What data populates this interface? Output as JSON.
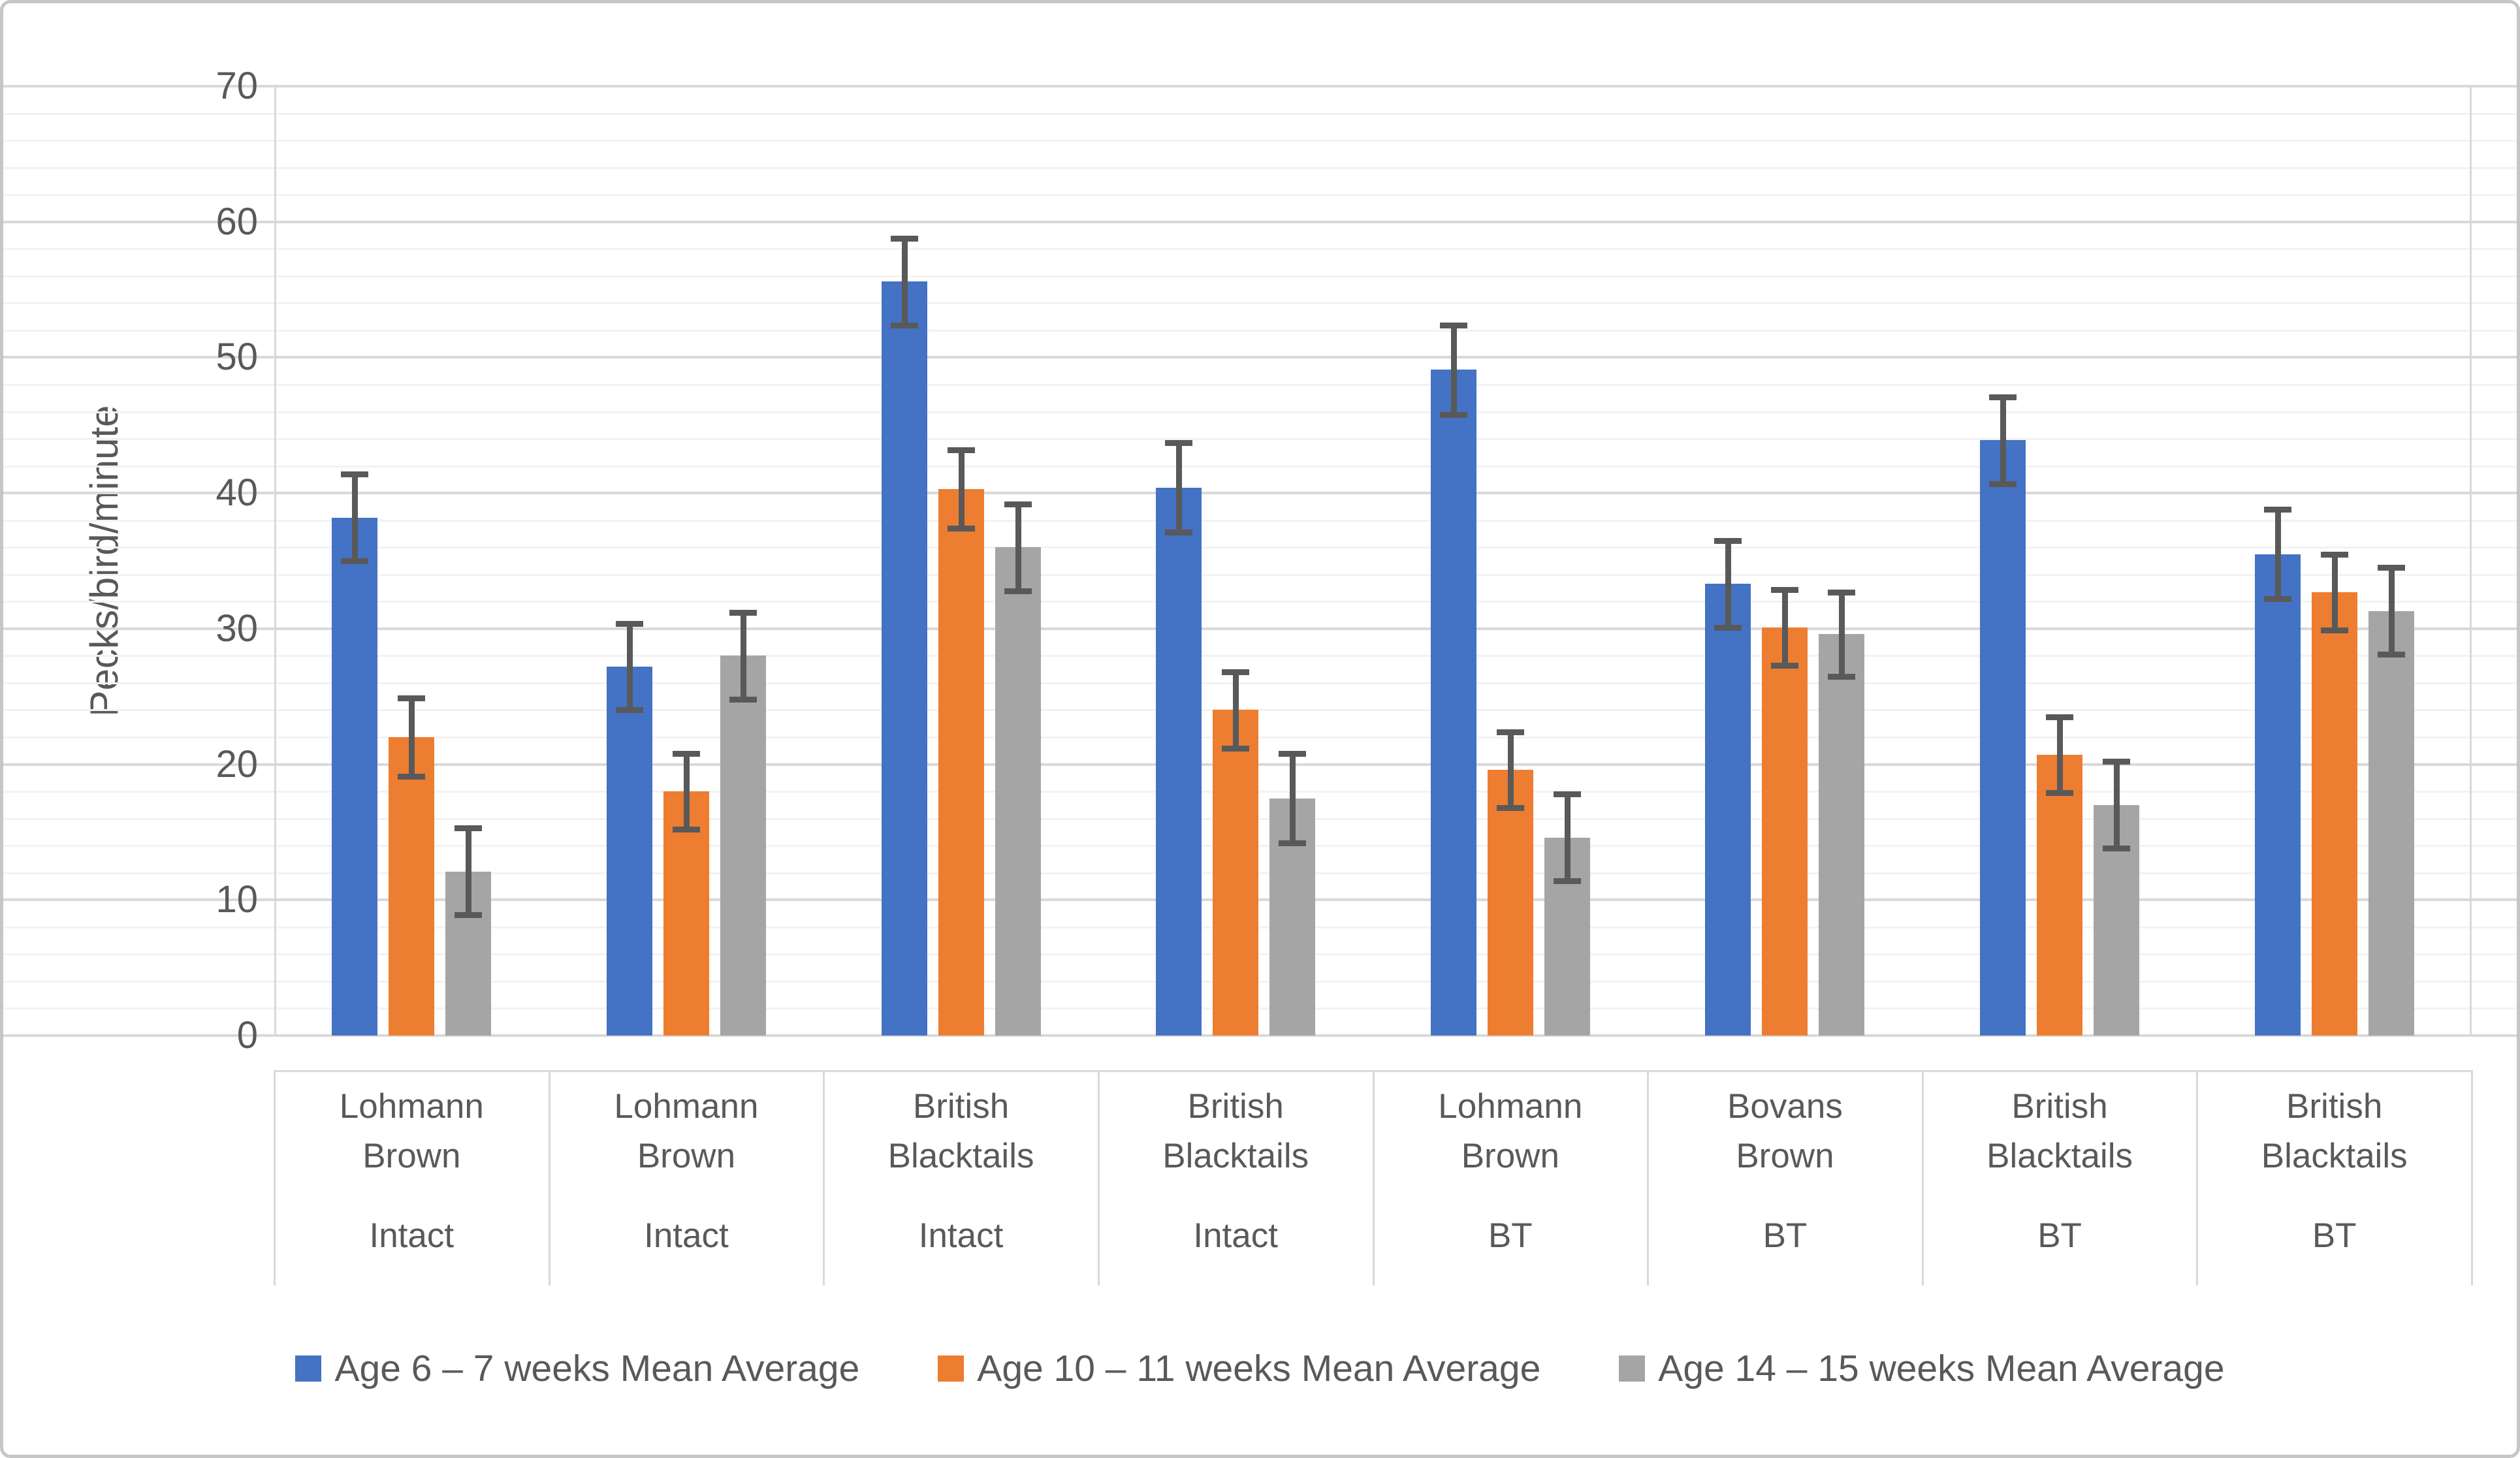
{
  "chart_data": {
    "type": "bar",
    "title": "",
    "xlabel": "",
    "ylabel": "Pecks/bird/minute",
    "ylim": [
      0,
      70
    ],
    "y_tick_step": 10,
    "y_minor_gridline_step": 2,
    "y_ticks": [
      "0",
      "10",
      "20",
      "30",
      "40",
      "50",
      "60",
      "70"
    ],
    "grid": "horizontal, major and minor gridlines",
    "legend_position": "bottom",
    "categories": [
      {
        "breed": "Lohmann Brown",
        "treatment": "Intact"
      },
      {
        "breed": "Lohmann Brown",
        "treatment": "Intact"
      },
      {
        "breed": "British Blacktails",
        "treatment": "Intact"
      },
      {
        "breed": "British Blacktails",
        "treatment": "Intact"
      },
      {
        "breed": "Lohmann Brown",
        "treatment": "BT"
      },
      {
        "breed": "Bovans Brown",
        "treatment": "BT"
      },
      {
        "breed": "British Blacktails",
        "treatment": "BT"
      },
      {
        "breed": "British Blacktails",
        "treatment": "BT"
      }
    ],
    "series": [
      {
        "name": "Age 6 – 7 weeks Mean Average",
        "color": "#4472C4",
        "values": [
          38.2,
          27.2,
          55.6,
          40.4,
          49.1,
          33.3,
          43.9,
          35.5
        ],
        "errors": [
          3.2,
          3.2,
          3.2,
          3.3,
          3.3,
          3.2,
          3.2,
          3.3
        ]
      },
      {
        "name": "Age 10 – 11 weeks Mean Average",
        "color": "#ED7D31",
        "values": [
          22.0,
          18.0,
          40.3,
          24.0,
          19.6,
          30.1,
          20.7,
          32.7
        ],
        "errors": [
          2.9,
          2.8,
          2.9,
          2.8,
          2.8,
          2.8,
          2.8,
          2.8
        ]
      },
      {
        "name": "Age 14 – 15 weeks Mean Average",
        "color": "#A5A5A5",
        "values": [
          12.1,
          28.0,
          36.0,
          17.5,
          14.6,
          29.6,
          17.0,
          31.3
        ],
        "errors": [
          3.2,
          3.2,
          3.2,
          3.3,
          3.2,
          3.1,
          3.2,
          3.2
        ]
      }
    ],
    "error_bar_color": "#595959"
  },
  "style": {
    "axis_text_color": "#595959",
    "major_gridline_color": "#D9D9D9",
    "minor_gridline_color": "#F2F2F2",
    "figure_border_color": "#C6C6C6",
    "background_color": "#FFFFFF"
  }
}
